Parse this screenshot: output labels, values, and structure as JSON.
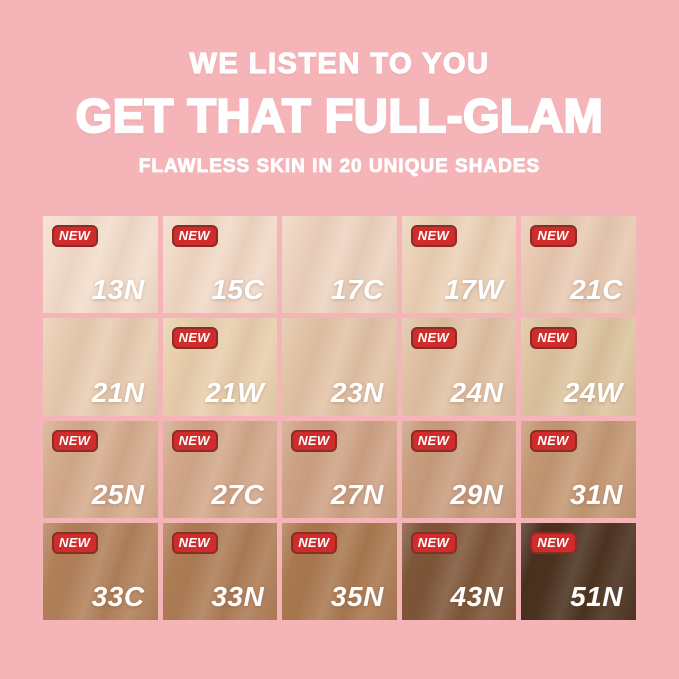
{
  "page": {
    "background_color": "#f5b4b8",
    "text_color": "#ffffff"
  },
  "header": {
    "line1": "WE LISTEN TO YOU",
    "line2": "GET THAT FULL-GLAM",
    "line3": "FLAWLESS SKIN IN 20 UNIQUE SHADES"
  },
  "badge": {
    "label": "NEW",
    "bg_color": "#d02c2c",
    "border_color": "#8a2d27",
    "text_color": "#ffffff"
  },
  "grid": {
    "rows": 4,
    "cols": 5,
    "total_shades": 20,
    "shades": [
      {
        "code": "13N",
        "new": true,
        "color": "#f3ddcc"
      },
      {
        "code": "15C",
        "new": true,
        "color": "#f1d9c6"
      },
      {
        "code": "17C",
        "new": false,
        "color": "#edd3bf"
      },
      {
        "code": "17W",
        "new": true,
        "color": "#ebd1b6"
      },
      {
        "code": "21C",
        "new": true,
        "color": "#e8c9b1"
      },
      {
        "code": "21N",
        "new": false,
        "color": "#e8ccb1"
      },
      {
        "code": "21W",
        "new": true,
        "color": "#e8cfad"
      },
      {
        "code": "23N",
        "new": false,
        "color": "#e2c3a6"
      },
      {
        "code": "24N",
        "new": true,
        "color": "#e0c1a3"
      },
      {
        "code": "24W",
        "new": true,
        "color": "#ddc49f"
      },
      {
        "code": "25N",
        "new": true,
        "color": "#d4ab8c"
      },
      {
        "code": "27C",
        "new": true,
        "color": "#d2a88a"
      },
      {
        "code": "27N",
        "new": true,
        "color": "#cea284"
      },
      {
        "code": "29N",
        "new": true,
        "color": "#c89d7d"
      },
      {
        "code": "31N",
        "new": true,
        "color": "#c39773"
      },
      {
        "code": "33C",
        "new": true,
        "color": "#b18059"
      },
      {
        "code": "33N",
        "new": true,
        "color": "#ad7c55"
      },
      {
        "code": "35N",
        "new": true,
        "color": "#a9784f"
      },
      {
        "code": "43N",
        "new": true,
        "color": "#7d5538"
      },
      {
        "code": "51N",
        "new": true,
        "color": "#49301e"
      }
    ]
  }
}
